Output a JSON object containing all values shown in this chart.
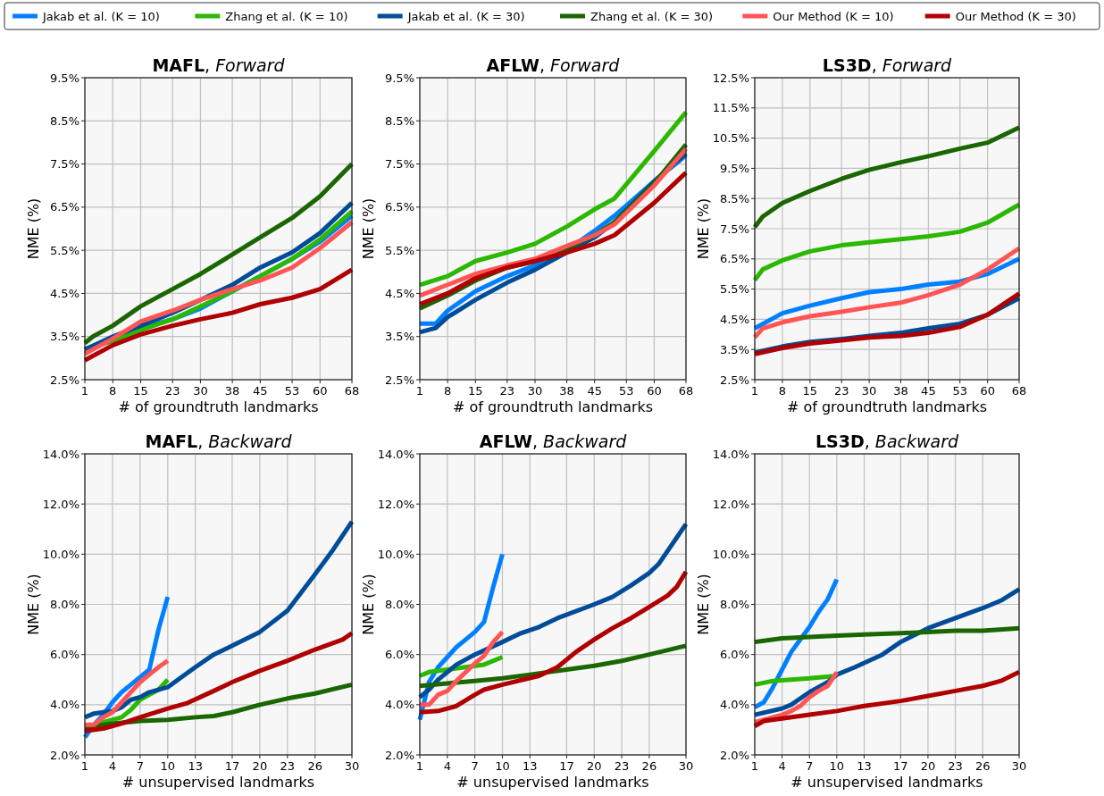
{
  "chart_data": [
    {
      "type": "line",
      "title": "MAFL, Forward",
      "xlabel": "# of groundtruth landmarks",
      "ylabel": "NME (%)",
      "legend": "top",
      "grid": true,
      "xlim": [
        1,
        68
      ],
      "xticks": [
        1,
        8,
        15,
        23,
        30,
        38,
        45,
        53,
        60,
        68
      ],
      "ylim": [
        2.5,
        9.5
      ],
      "yticks": [
        {
          "value": 2.5,
          "label": "2.5%"
        },
        {
          "value": 3.5,
          "label": "3.5%"
        },
        {
          "value": 4.5,
          "label": "4.5%"
        },
        {
          "value": 5.5,
          "label": "5.5%"
        },
        {
          "value": 6.5,
          "label": "6.5%"
        },
        {
          "value": 7.5,
          "label": "7.5%"
        },
        {
          "value": 8.5,
          "label": "8.5%"
        },
        {
          "value": 9.5,
          "label": "9.5%"
        }
      ],
      "series": [
        {
          "name": "Jakab et al. (K = 10)",
          "color": "#0080ff",
          "x": [
            1,
            8,
            15,
            23,
            30,
            38,
            45,
            53,
            60,
            68
          ],
          "values": [
            3.2,
            3.45,
            3.7,
            3.9,
            4.15,
            4.55,
            4.9,
            5.3,
            5.7,
            6.3
          ]
        },
        {
          "name": "Zhang et al. (K = 10)",
          "color": "#2ab800",
          "x": [
            1,
            8,
            15,
            23,
            30,
            38,
            45,
            53,
            60,
            68
          ],
          "values": [
            3.2,
            3.4,
            3.65,
            3.9,
            4.2,
            4.55,
            4.9,
            5.3,
            5.75,
            6.4
          ]
        },
        {
          "name": "Jakab et al. (K = 30)",
          "color": "#004c99",
          "x": [
            1,
            8,
            15,
            23,
            30,
            38,
            45,
            53,
            60,
            68
          ],
          "values": [
            3.2,
            3.5,
            3.75,
            4.05,
            4.35,
            4.7,
            5.1,
            5.45,
            5.9,
            6.6
          ]
        },
        {
          "name": "Zhang et al. (K = 30)",
          "color": "#1a6600",
          "x": [
            1,
            3,
            8,
            15,
            23,
            30,
            38,
            45,
            53,
            60,
            68
          ],
          "values": [
            3.35,
            3.5,
            3.75,
            4.2,
            4.6,
            4.95,
            5.4,
            5.8,
            6.25,
            6.75,
            7.5
          ]
        },
        {
          "name": "Our Method (K = 10)",
          "color": "#ff5555",
          "x": [
            1,
            8,
            15,
            23,
            30,
            38,
            45,
            53,
            60,
            68
          ],
          "values": [
            3.1,
            3.45,
            3.85,
            4.1,
            4.35,
            4.6,
            4.8,
            5.1,
            5.55,
            6.15
          ]
        },
        {
          "name": "Our Method (K = 30)",
          "color": "#b00000",
          "x": [
            1,
            8,
            15,
            23,
            30,
            38,
            45,
            53,
            60,
            68
          ],
          "values": [
            2.95,
            3.3,
            3.55,
            3.75,
            3.9,
            4.05,
            4.25,
            4.4,
            4.6,
            5.05
          ]
        }
      ]
    },
    {
      "type": "line",
      "title": "AFLW, Forward",
      "xlabel": "# of groundtruth landmarks",
      "ylabel": "NME (%)",
      "grid": true,
      "xlim": [
        1,
        68
      ],
      "xticks": [
        1,
        8,
        15,
        23,
        30,
        38,
        45,
        53,
        60,
        68
      ],
      "ylim": [
        2.5,
        9.5
      ],
      "yticks": [
        {
          "value": 2.5,
          "label": "2.5%"
        },
        {
          "value": 3.5,
          "label": "3.5%"
        },
        {
          "value": 4.5,
          "label": "4.5%"
        },
        {
          "value": 5.5,
          "label": "5.5%"
        },
        {
          "value": 6.5,
          "label": "6.5%"
        },
        {
          "value": 7.5,
          "label": "7.5%"
        },
        {
          "value": 8.5,
          "label": "8.5%"
        },
        {
          "value": 9.5,
          "label": "9.5%"
        }
      ],
      "series": [
        {
          "color": "#0080ff",
          "x": [
            1,
            5,
            8,
            15,
            23,
            30,
            38,
            45,
            50,
            60,
            68
          ],
          "values": [
            3.8,
            3.8,
            4.1,
            4.55,
            4.9,
            5.15,
            5.5,
            5.95,
            6.3,
            7.1,
            7.7
          ]
        },
        {
          "color": "#2ab800",
          "x": [
            1,
            8,
            15,
            23,
            30,
            38,
            45,
            50,
            60,
            68
          ],
          "values": [
            4.7,
            4.9,
            5.25,
            5.45,
            5.65,
            6.05,
            6.45,
            6.7,
            7.8,
            8.7
          ]
        },
        {
          "color": "#004c99",
          "x": [
            1,
            5,
            8,
            15,
            23,
            30,
            38,
            45,
            50,
            60,
            68
          ],
          "values": [
            3.6,
            3.7,
            3.95,
            4.35,
            4.75,
            5.05,
            5.45,
            5.8,
            6.15,
            7.1,
            7.75
          ]
        },
        {
          "color": "#1a6600",
          "x": [
            1,
            8,
            15,
            23,
            30,
            38,
            45,
            50,
            60,
            68
          ],
          "values": [
            4.15,
            4.45,
            4.8,
            5.1,
            5.25,
            5.55,
            5.85,
            6.15,
            7.05,
            7.95
          ]
        },
        {
          "color": "#ff5555",
          "x": [
            1,
            8,
            15,
            23,
            30,
            38,
            45,
            50,
            60,
            68
          ],
          "values": [
            4.45,
            4.7,
            4.95,
            5.15,
            5.3,
            5.6,
            5.85,
            6.1,
            7.0,
            7.85
          ]
        },
        {
          "color": "#b00000",
          "x": [
            1,
            8,
            15,
            23,
            30,
            38,
            45,
            50,
            60,
            68
          ],
          "values": [
            4.25,
            4.5,
            4.85,
            5.1,
            5.25,
            5.45,
            5.65,
            5.85,
            6.6,
            7.3
          ]
        }
      ]
    },
    {
      "type": "line",
      "title": "LS3D, Forward",
      "xlabel": "# of groundtruth landmarks",
      "ylabel": "NME (%)",
      "grid": true,
      "xlim": [
        1,
        68
      ],
      "xticks": [
        1,
        8,
        15,
        23,
        30,
        38,
        45,
        53,
        60,
        68
      ],
      "ylim": [
        2.5,
        12.5
      ],
      "yticks": [
        {
          "value": 2.5,
          "label": "2.5%"
        },
        {
          "value": 3.5,
          "label": "3.5%"
        },
        {
          "value": 4.5,
          "label": "4.5%"
        },
        {
          "value": 5.5,
          "label": "5.5%"
        },
        {
          "value": 6.5,
          "label": "6.5%"
        },
        {
          "value": 7.5,
          "label": "7.5%"
        },
        {
          "value": 8.5,
          "label": "8.5%"
        },
        {
          "value": 9.5,
          "label": "9.5%"
        },
        {
          "value": 10.5,
          "label": "10.5%"
        },
        {
          "value": 11.5,
          "label": "11.5%"
        },
        {
          "value": 12.5,
          "label": "12.5%"
        }
      ],
      "series": [
        {
          "color": "#0080ff",
          "x": [
            1,
            8,
            15,
            23,
            30,
            38,
            45,
            53,
            60,
            68
          ],
          "values": [
            4.2,
            4.7,
            4.95,
            5.2,
            5.4,
            5.5,
            5.65,
            5.75,
            6.0,
            6.5
          ]
        },
        {
          "color": "#2ab800",
          "x": [
            1,
            3,
            8,
            15,
            23,
            30,
            38,
            45,
            53,
            60,
            68
          ],
          "values": [
            5.8,
            6.15,
            6.45,
            6.75,
            6.95,
            7.05,
            7.15,
            7.25,
            7.4,
            7.7,
            8.3
          ]
        },
        {
          "color": "#004c99",
          "x": [
            1,
            8,
            15,
            23,
            30,
            38,
            45,
            53,
            60,
            68
          ],
          "values": [
            3.4,
            3.6,
            3.75,
            3.85,
            3.95,
            4.05,
            4.2,
            4.35,
            4.65,
            5.2
          ]
        },
        {
          "color": "#1a6600",
          "x": [
            1,
            3,
            8,
            15,
            23,
            30,
            38,
            45,
            53,
            60,
            68
          ],
          "values": [
            7.55,
            7.9,
            8.35,
            8.75,
            9.15,
            9.45,
            9.7,
            9.9,
            10.15,
            10.35,
            10.85
          ]
        },
        {
          "color": "#ff5555",
          "x": [
            1,
            3,
            8,
            15,
            23,
            30,
            38,
            45,
            53,
            60,
            68
          ],
          "values": [
            3.9,
            4.2,
            4.4,
            4.6,
            4.75,
            4.9,
            5.05,
            5.3,
            5.65,
            6.15,
            6.85
          ]
        },
        {
          "color": "#b00000",
          "x": [
            1,
            8,
            15,
            23,
            30,
            38,
            45,
            53,
            60,
            68
          ],
          "values": [
            3.35,
            3.55,
            3.7,
            3.8,
            3.9,
            3.95,
            4.05,
            4.25,
            4.65,
            5.35
          ]
        }
      ]
    },
    {
      "type": "line",
      "title": "MAFL, Backward",
      "xlabel": "# unsupervised landmarks",
      "ylabel": "NME (%)",
      "grid": true,
      "xlim": [
        1,
        30
      ],
      "xticks": [
        1,
        4,
        7,
        10,
        13,
        17,
        20,
        23,
        26,
        30
      ],
      "ylim": [
        2,
        14
      ],
      "yticks": [
        {
          "value": 2,
          "label": "2.0%"
        },
        {
          "value": 4,
          "label": "4.0%"
        },
        {
          "value": 6,
          "label": "6.0%"
        },
        {
          "value": 8,
          "label": "8.0%"
        },
        {
          "value": 10,
          "label": "10.0%"
        },
        {
          "value": 12,
          "label": "12.0%"
        },
        {
          "value": 14,
          "label": "14.0%"
        }
      ],
      "series": [
        {
          "color": "#0080ff",
          "x": [
            1,
            2,
            3,
            4,
            5,
            6,
            7,
            8,
            9,
            10
          ],
          "values": [
            2.7,
            3.2,
            3.6,
            4.1,
            4.5,
            4.8,
            5.1,
            5.4,
            7.0,
            8.3
          ]
        },
        {
          "color": "#2ab800",
          "x": [
            1,
            2,
            3,
            4,
            5,
            6,
            7,
            8,
            9,
            10
          ],
          "values": [
            3.1,
            3.2,
            3.3,
            3.4,
            3.5,
            3.8,
            4.2,
            4.4,
            4.6,
            5.0
          ]
        },
        {
          "color": "#004c99",
          "x": [
            1,
            2,
            3,
            4,
            5,
            6,
            7,
            8,
            10,
            13,
            15,
            17,
            20,
            23,
            26,
            28,
            30
          ],
          "values": [
            3.5,
            3.65,
            3.7,
            3.75,
            3.9,
            4.2,
            4.3,
            4.5,
            4.7,
            5.5,
            6.0,
            6.35,
            6.9,
            7.75,
            9.2,
            10.2,
            11.3
          ]
        },
        {
          "color": "#1a6600",
          "x": [
            1,
            4,
            7,
            10,
            13,
            15,
            17,
            20,
            23,
            26,
            30
          ],
          "values": [
            3.1,
            3.25,
            3.35,
            3.4,
            3.5,
            3.55,
            3.7,
            4.0,
            4.25,
            4.45,
            4.8
          ]
        },
        {
          "color": "#ff5555",
          "x": [
            1,
            2,
            3,
            4,
            5,
            6,
            7,
            8,
            9,
            10
          ],
          "values": [
            3.2,
            3.2,
            3.5,
            3.7,
            4.1,
            4.5,
            4.9,
            5.2,
            5.5,
            5.75
          ]
        },
        {
          "color": "#b00000",
          "x": [
            1,
            3,
            5,
            7,
            10,
            12,
            15,
            17,
            20,
            23,
            26,
            29,
            30
          ],
          "values": [
            2.95,
            3.05,
            3.25,
            3.5,
            3.85,
            4.05,
            4.55,
            4.9,
            5.35,
            5.75,
            6.2,
            6.6,
            6.85
          ]
        }
      ]
    },
    {
      "type": "line",
      "title": "AFLW, Backward",
      "xlabel": "# unsupervised landmarks",
      "ylabel": "NME (%)",
      "grid": true,
      "xlim": [
        1,
        30
      ],
      "xticks": [
        1,
        4,
        7,
        10,
        13,
        17,
        20,
        23,
        26,
        30
      ],
      "ylim": [
        2,
        14
      ],
      "yticks": [
        {
          "value": 2,
          "label": "2.0%"
        },
        {
          "value": 4,
          "label": "4.0%"
        },
        {
          "value": 6,
          "label": "6.0%"
        },
        {
          "value": 8,
          "label": "8.0%"
        },
        {
          "value": 10,
          "label": "10.0%"
        },
        {
          "value": 12,
          "label": "12.0%"
        },
        {
          "value": 14,
          "label": "14.0%"
        }
      ],
      "series": [
        {
          "color": "#0080ff",
          "x": [
            1,
            2,
            3,
            4,
            5,
            6,
            7,
            8,
            9,
            10
          ],
          "values": [
            3.4,
            4.9,
            5.5,
            5.9,
            6.3,
            6.6,
            6.9,
            7.3,
            8.7,
            10.0
          ]
        },
        {
          "color": "#2ab800",
          "x": [
            1,
            2,
            4,
            6,
            8,
            10
          ],
          "values": [
            5.15,
            5.3,
            5.4,
            5.5,
            5.6,
            5.9
          ]
        },
        {
          "color": "#004c99",
          "x": [
            1,
            2,
            3,
            4,
            5,
            7,
            10,
            12,
            14,
            16,
            20,
            22,
            24,
            26,
            27,
            30
          ],
          "values": [
            4.3,
            4.6,
            5.0,
            5.3,
            5.6,
            6.0,
            6.5,
            6.85,
            7.1,
            7.45,
            8.0,
            8.3,
            8.75,
            9.25,
            9.6,
            11.2
          ]
        },
        {
          "color": "#1a6600",
          "x": [
            1,
            4,
            7,
            10,
            13,
            17,
            20,
            23,
            26,
            30
          ],
          "values": [
            4.75,
            4.85,
            4.95,
            5.05,
            5.2,
            5.4,
            5.55,
            5.75,
            6.0,
            6.35
          ]
        },
        {
          "color": "#ff5555",
          "x": [
            1,
            2,
            3,
            4,
            5,
            6,
            7,
            8,
            9,
            10
          ],
          "values": [
            4.0,
            4.0,
            4.4,
            4.55,
            4.95,
            5.3,
            5.65,
            5.95,
            6.5,
            6.9
          ]
        },
        {
          "color": "#b00000",
          "x": [
            1,
            3,
            5,
            7,
            8,
            10,
            14,
            16,
            18,
            20,
            22,
            24,
            26,
            28,
            29,
            30
          ],
          "values": [
            3.7,
            3.75,
            3.95,
            4.4,
            4.6,
            4.8,
            5.15,
            5.5,
            6.1,
            6.6,
            7.05,
            7.45,
            7.9,
            8.35,
            8.7,
            9.3
          ]
        }
      ]
    },
    {
      "type": "line",
      "title": "LS3D, Backward",
      "xlabel": "# unsupervised landmarks",
      "ylabel": "NME (%)",
      "grid": true,
      "xlim": [
        1,
        30
      ],
      "xticks": [
        1,
        4,
        7,
        10,
        13,
        17,
        20,
        23,
        26,
        30
      ],
      "ylim": [
        2,
        14
      ],
      "yticks": [
        {
          "value": 2,
          "label": "2.0%"
        },
        {
          "value": 4,
          "label": "4.0%"
        },
        {
          "value": 6,
          "label": "6.0%"
        },
        {
          "value": 8,
          "label": "8.0%"
        },
        {
          "value": 10,
          "label": "10.0%"
        },
        {
          "value": 12,
          "label": "12.0%"
        },
        {
          "value": 14,
          "label": "14.0%"
        }
      ],
      "series": [
        {
          "color": "#0080ff",
          "x": [
            1,
            2,
            3,
            4,
            5,
            6,
            7,
            8,
            9,
            10
          ],
          "values": [
            3.9,
            4.1,
            4.7,
            5.4,
            6.1,
            6.6,
            7.1,
            7.7,
            8.2,
            9.0
          ]
        },
        {
          "color": "#2ab800",
          "x": [
            1,
            3,
            5,
            7,
            10
          ],
          "values": [
            4.8,
            4.95,
            5.0,
            5.05,
            5.15
          ]
        },
        {
          "color": "#004c99",
          "x": [
            1,
            4,
            5,
            7,
            9,
            10,
            12,
            15,
            17,
            20,
            23,
            26,
            28,
            30
          ],
          "values": [
            3.6,
            3.85,
            4.0,
            4.5,
            4.9,
            5.2,
            5.5,
            6.0,
            6.5,
            7.05,
            7.45,
            7.85,
            8.15,
            8.6
          ]
        },
        {
          "color": "#1a6600",
          "x": [
            1,
            2,
            4,
            7,
            10,
            13,
            17,
            20,
            23,
            26,
            30
          ],
          "values": [
            6.5,
            6.55,
            6.65,
            6.7,
            6.75,
            6.8,
            6.85,
            6.9,
            6.95,
            6.95,
            7.05
          ]
        },
        {
          "color": "#ff5555",
          "x": [
            1,
            3,
            4,
            5,
            6,
            7,
            8,
            9,
            10
          ],
          "values": [
            3.3,
            3.5,
            3.6,
            3.75,
            3.95,
            4.3,
            4.55,
            4.75,
            5.3
          ]
        },
        {
          "color": "#b00000",
          "x": [
            1,
            2,
            4,
            7,
            10,
            13,
            17,
            20,
            23,
            26,
            28,
            30
          ],
          "values": [
            3.15,
            3.35,
            3.45,
            3.6,
            3.75,
            3.95,
            4.15,
            4.35,
            4.55,
            4.75,
            4.95,
            5.3
          ]
        }
      ]
    }
  ]
}
